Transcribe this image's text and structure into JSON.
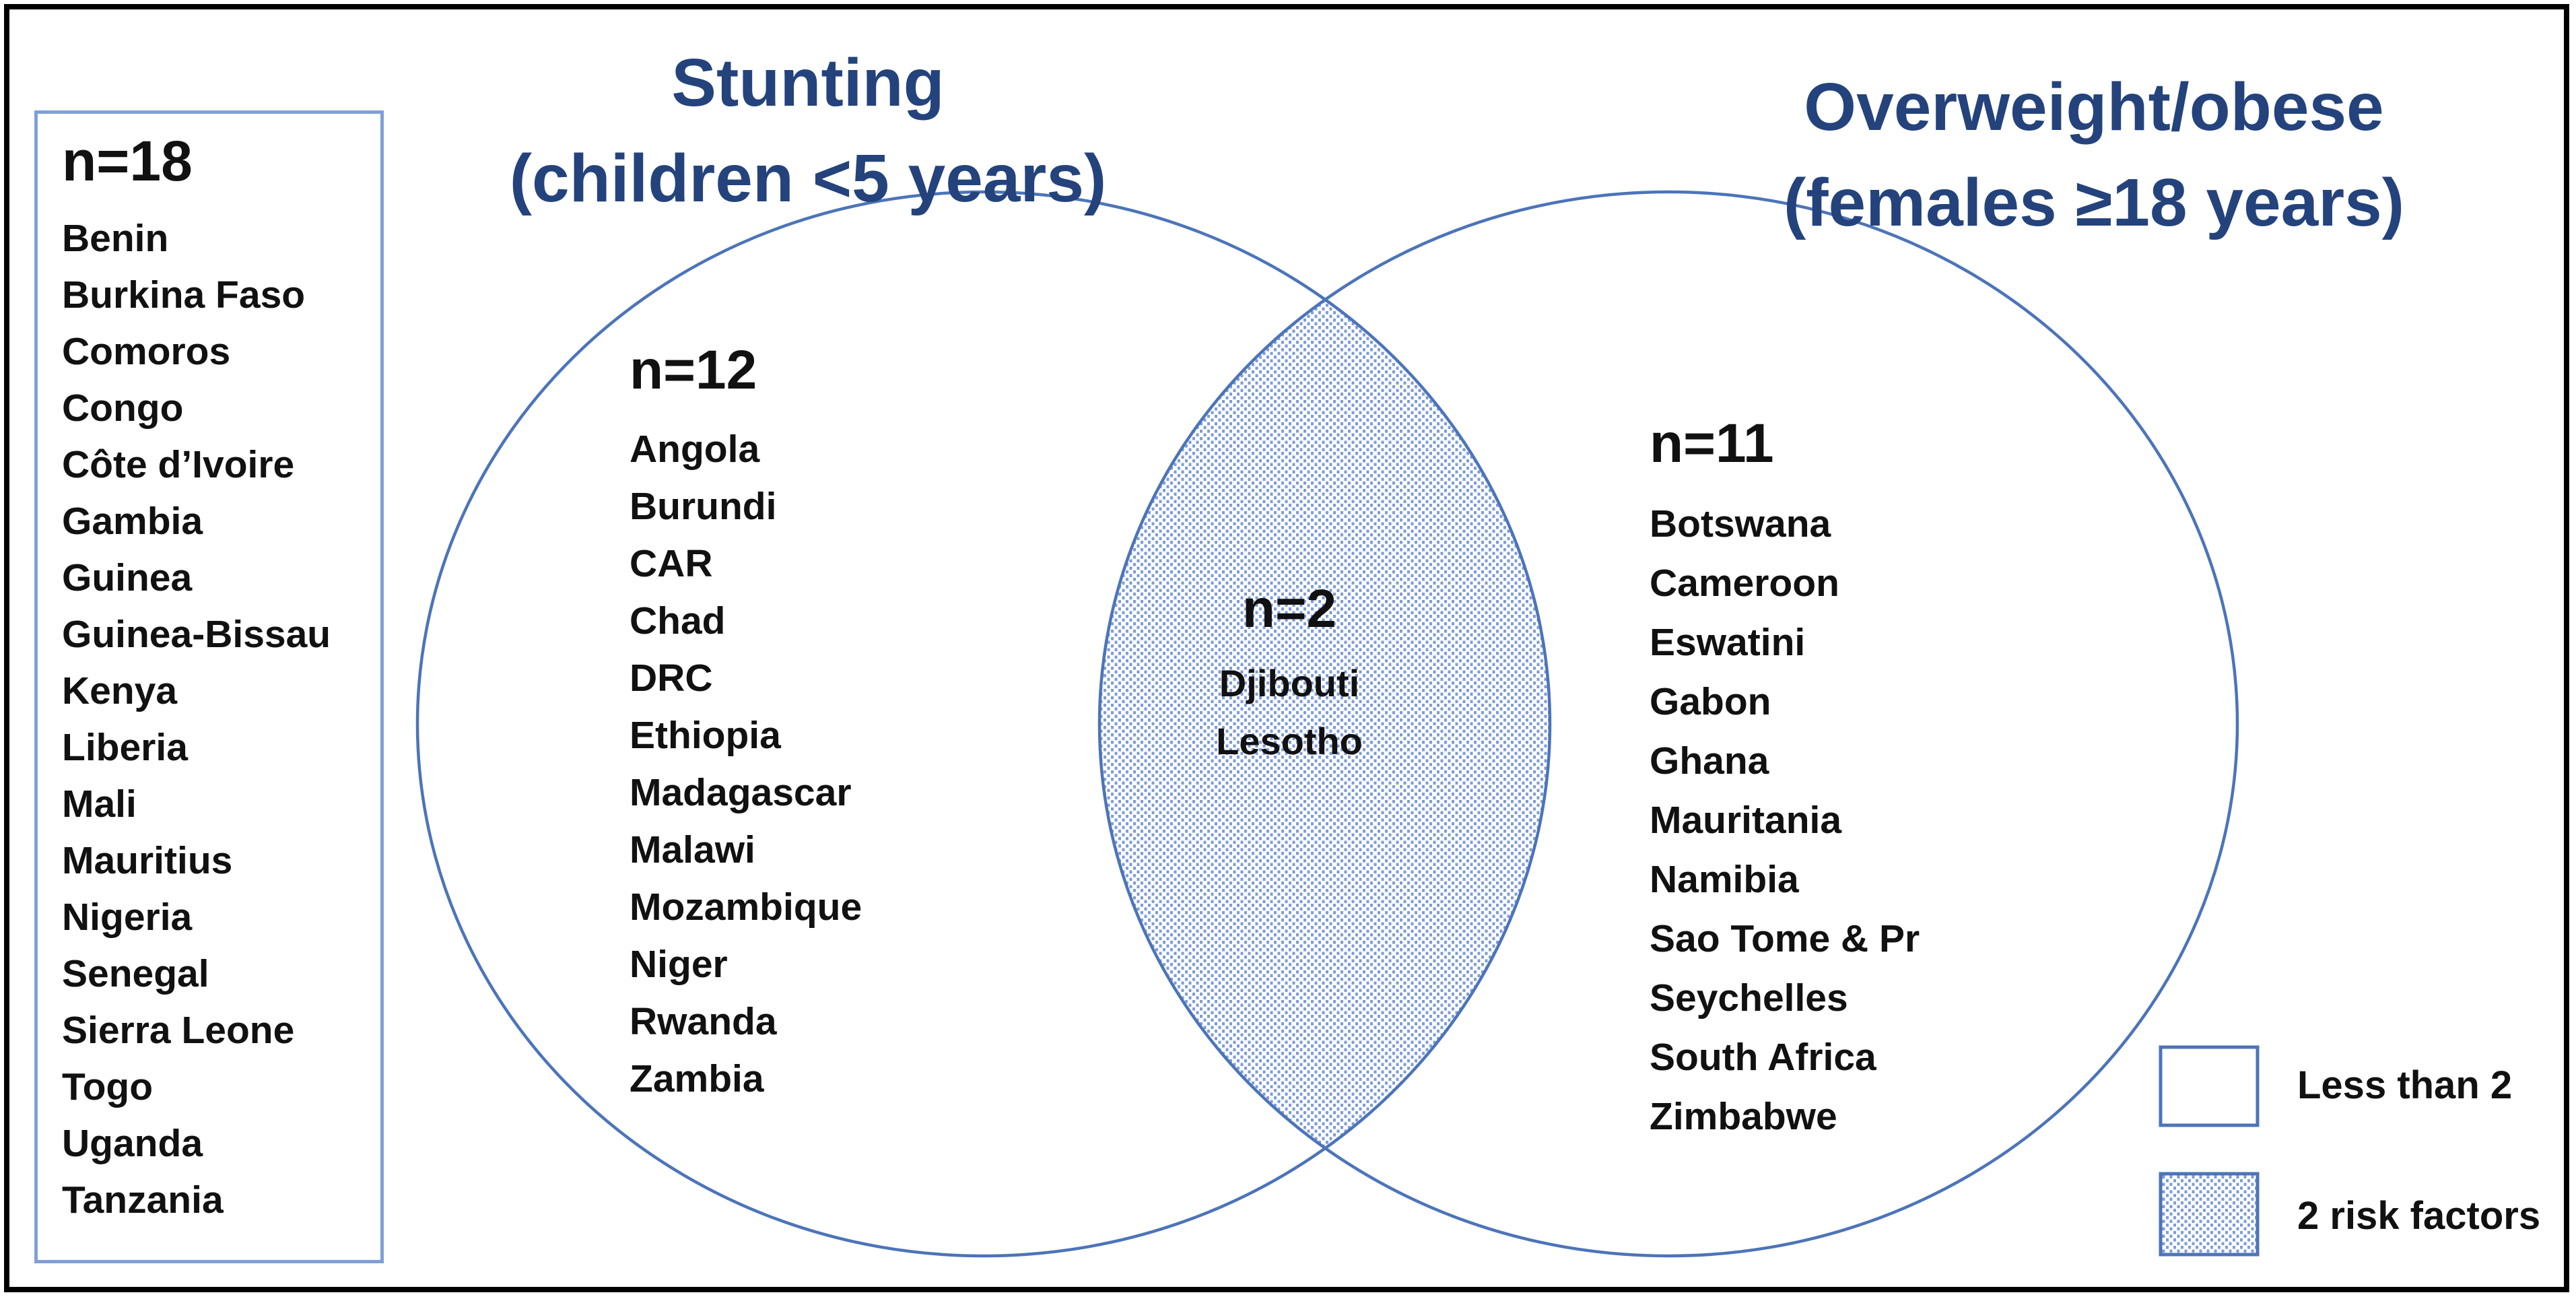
{
  "titles": {
    "left": [
      "Stunting",
      "(children <5 years)"
    ],
    "right": [
      "Overweight/obese",
      "(females ≥18 years)"
    ]
  },
  "outside_group": {
    "header": "n=18",
    "countries": [
      "Benin",
      "Burkina Faso",
      "Comoros",
      "Congo",
      "Côte d’Ivoire",
      "Gambia",
      "Guinea",
      "Guinea-Bissau",
      "Kenya",
      "Liberia",
      "Mali",
      "Mauritius",
      "Nigeria",
      "Senegal",
      "Sierra Leone",
      "Togo",
      "Uganda",
      "Tanzania"
    ]
  },
  "stunting_only": {
    "header": "n=12",
    "countries": [
      "Angola",
      "Burundi",
      "CAR",
      "Chad",
      "DRC",
      "Ethiopia",
      "Madagascar",
      "Malawi",
      "Mozambique",
      "Niger",
      "Rwanda",
      "Zambia"
    ]
  },
  "both_risk_factors": {
    "header": "n=2",
    "countries": [
      "Djibouti",
      "Lesotho"
    ]
  },
  "overweight_only": {
    "header": "n=11",
    "countries": [
      "Botswana",
      "Cameroon",
      "Eswatini",
      "Gabon",
      "Ghana",
      "Mauritania",
      "Namibia",
      "Sao Tome & Pr",
      "Seychelles",
      "South Africa",
      "Zimbabwe"
    ]
  },
  "legend": {
    "items": [
      {
        "swatch": "plain",
        "label": "Less than 2"
      },
      {
        "swatch": "dotted",
        "label": "2 risk factors"
      }
    ]
  },
  "colors": {
    "title_navy": "#24437C",
    "circle_stroke": "#4C74B9",
    "box_border": "#7F9FD6",
    "dot_fill": "#7E9CD8",
    "text": "#111111",
    "frame": "#000000"
  }
}
